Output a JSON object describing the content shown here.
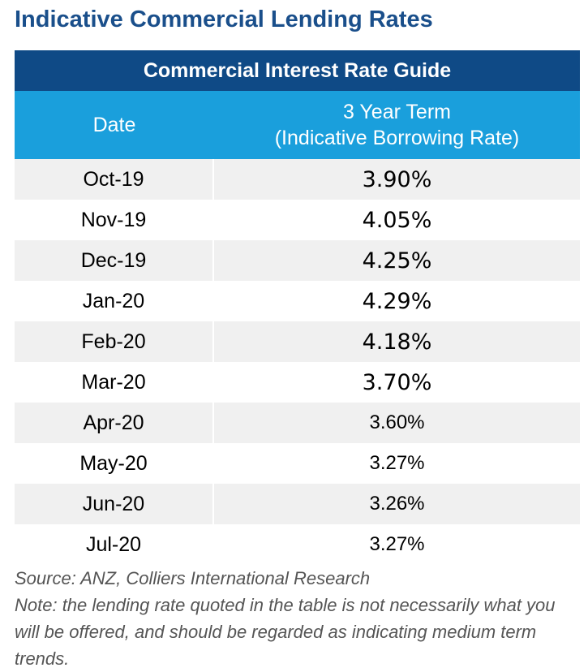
{
  "title": "Indicative Commercial Lending Rates",
  "chart_data": {
    "type": "table",
    "title": "Commercial Interest Rate Guide",
    "columns": {
      "date": "Date",
      "rate_line1": "3 Year Term",
      "rate_line2": "(Indicative Borrowing Rate)"
    },
    "rows": [
      {
        "date": "Oct-19",
        "rate": "3.90%"
      },
      {
        "date": "Nov-19",
        "rate": "4.05%"
      },
      {
        "date": "Dec-19",
        "rate": "4.25%"
      },
      {
        "date": "Jan-20",
        "rate": "4.29%"
      },
      {
        "date": "Feb-20",
        "rate": "4.18%"
      },
      {
        "date": "Mar-20",
        "rate": "3.70%"
      },
      {
        "date": "Apr-20",
        "rate": "3.60%"
      },
      {
        "date": "May-20",
        "rate": "3.27%"
      },
      {
        "date": "Jun-20",
        "rate": "3.26%"
      },
      {
        "date": "Jul-20",
        "rate": "3.27%"
      }
    ]
  },
  "source": "Source: ANZ, Colliers International Research",
  "note": "Note: the lending rate quoted in the table is not necessarily what you will be offered, and should be regarded as indicating medium term trends."
}
